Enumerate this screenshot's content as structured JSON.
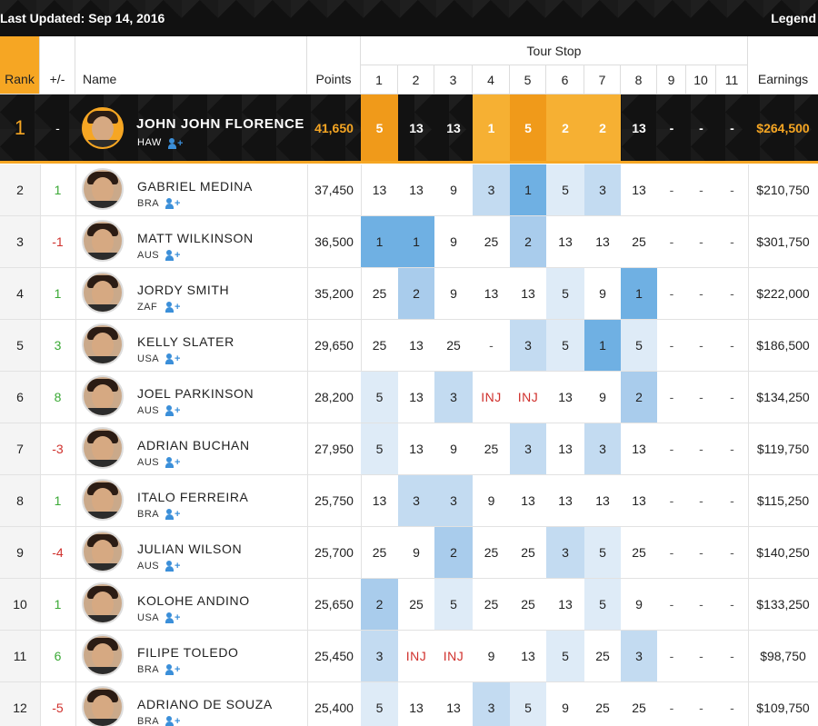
{
  "header": {
    "last_updated": "Last Updated: Sep 14, 2016",
    "legend": "Legend"
  },
  "columns": {
    "rank": "Rank",
    "change": "+/-",
    "name": "Name",
    "points": "Points",
    "tour_stop": "Tour Stop",
    "earnings": "Earnings",
    "stops": [
      "1",
      "2",
      "3",
      "4",
      "5",
      "6",
      "7",
      "8",
      "9",
      "10",
      "11"
    ]
  },
  "colors": {
    "accent": "#f6a623",
    "leader_bg": "#121212",
    "shade_light": "#deebf7",
    "shade_mid": "#a9ccec",
    "shade_dark": "#6fb0e3"
  },
  "leader": {
    "rank": "1",
    "change": "-",
    "name": "JOHN JOHN FLORENCE",
    "country": "HAW",
    "points": "41,650",
    "stops": [
      "5",
      "13",
      "13",
      "1",
      "5",
      "2",
      "2",
      "13",
      "-",
      "-",
      "-"
    ],
    "earnings": "$264,500"
  },
  "rows": [
    {
      "rank": "2",
      "change": "1",
      "name": "GABRIEL MEDINA",
      "country": "BRA",
      "points": "37,450",
      "stops": [
        "13",
        "13",
        "9",
        "3",
        "1",
        "5",
        "3",
        "13",
        "-",
        "-",
        "-"
      ],
      "earnings": "$210,750"
    },
    {
      "rank": "3",
      "change": "-1",
      "name": "MATT WILKINSON",
      "country": "AUS",
      "points": "36,500",
      "stops": [
        "1",
        "1",
        "9",
        "25",
        "2",
        "13",
        "13",
        "25",
        "-",
        "-",
        "-"
      ],
      "earnings": "$301,750"
    },
    {
      "rank": "4",
      "change": "1",
      "name": "JORDY SMITH",
      "country": "ZAF",
      "points": "35,200",
      "stops": [
        "25",
        "2",
        "9",
        "13",
        "13",
        "5",
        "9",
        "1",
        "-",
        "-",
        "-"
      ],
      "earnings": "$222,000"
    },
    {
      "rank": "5",
      "change": "3",
      "name": "KELLY SLATER",
      "country": "USA",
      "points": "29,650",
      "stops": [
        "25",
        "13",
        "25",
        "-",
        "3",
        "5",
        "1",
        "5",
        "-",
        "-",
        "-"
      ],
      "earnings": "$186,500"
    },
    {
      "rank": "6",
      "change": "8",
      "name": "JOEL PARKINSON",
      "country": "AUS",
      "points": "28,200",
      "stops": [
        "5",
        "13",
        "3",
        "INJ",
        "INJ",
        "13",
        "9",
        "2",
        "-",
        "-",
        "-"
      ],
      "earnings": "$134,250"
    },
    {
      "rank": "7",
      "change": "-3",
      "name": "ADRIAN BUCHAN",
      "country": "AUS",
      "points": "27,950",
      "stops": [
        "5",
        "13",
        "9",
        "25",
        "3",
        "13",
        "3",
        "13",
        "-",
        "-",
        "-"
      ],
      "earnings": "$119,750"
    },
    {
      "rank": "8",
      "change": "1",
      "name": "ITALO FERREIRA",
      "country": "BRA",
      "points": "25,750",
      "stops": [
        "13",
        "3",
        "3",
        "9",
        "13",
        "13",
        "13",
        "13",
        "-",
        "-",
        "-"
      ],
      "earnings": "$115,250"
    },
    {
      "rank": "9",
      "change": "-4",
      "name": "JULIAN WILSON",
      "country": "AUS",
      "points": "25,700",
      "stops": [
        "25",
        "9",
        "2",
        "25",
        "25",
        "3",
        "5",
        "25",
        "-",
        "-",
        "-"
      ],
      "earnings": "$140,250"
    },
    {
      "rank": "10",
      "change": "1",
      "name": "KOLOHE ANDINO",
      "country": "USA",
      "points": "25,650",
      "stops": [
        "2",
        "25",
        "5",
        "25",
        "25",
        "13",
        "5",
        "9",
        "-",
        "-",
        "-"
      ],
      "earnings": "$133,250"
    },
    {
      "rank": "11",
      "change": "6",
      "name": "FILIPE TOLEDO",
      "country": "BRA",
      "points": "25,450",
      "stops": [
        "3",
        "INJ",
        "INJ",
        "9",
        "13",
        "5",
        "25",
        "3",
        "-",
        "-",
        "-"
      ],
      "earnings": "$98,750"
    },
    {
      "rank": "12",
      "change": "-5",
      "name": "ADRIANO DE SOUZA",
      "country": "BRA",
      "points": "25,400",
      "stops": [
        "5",
        "13",
        "13",
        "3",
        "5",
        "9",
        "25",
        "25",
        "-",
        "-",
        "-"
      ],
      "earnings": "$109,750"
    }
  ]
}
